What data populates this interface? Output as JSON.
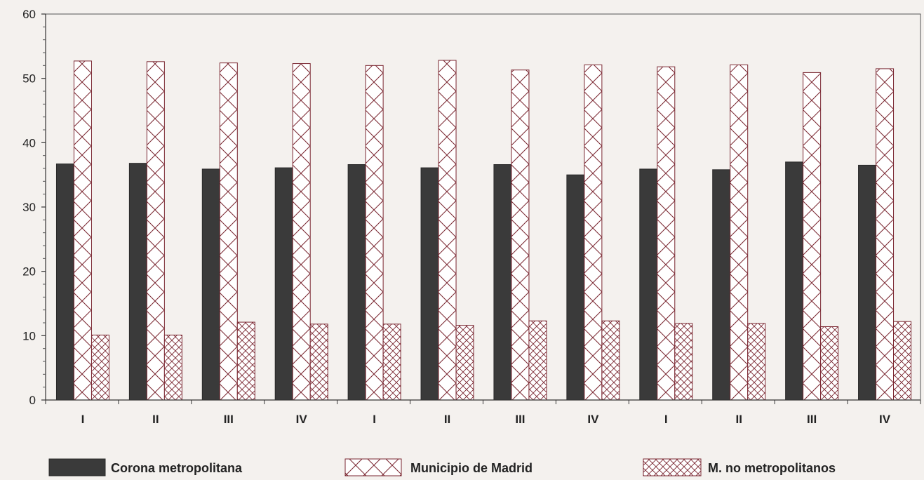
{
  "chart_data": {
    "type": "bar",
    "categories": [
      "I",
      "II",
      "III",
      "IV",
      "I",
      "II",
      "III",
      "IV",
      "I",
      "II",
      "III",
      "IV"
    ],
    "series": [
      {
        "name": "Corona metropolitana",
        "pattern": "solid",
        "color": "#3a3a3a",
        "values": [
          36.7,
          36.8,
          35.9,
          36.1,
          36.6,
          36.1,
          36.6,
          35.0,
          35.9,
          35.8,
          37.0,
          36.5
        ]
      },
      {
        "name": "Municipio de Madrid",
        "pattern": "wide-crosshatch",
        "color": "#ffffff",
        "values": [
          52.7,
          52.6,
          52.4,
          52.3,
          52.0,
          52.8,
          51.3,
          52.1,
          51.8,
          52.1,
          50.9,
          51.5
        ]
      },
      {
        "name": "M. no metropolitanos",
        "pattern": "dense-crosshatch",
        "color": "#ffffff",
        "values": [
          10.1,
          10.1,
          12.1,
          11.8,
          11.8,
          11.6,
          12.3,
          12.3,
          11.9,
          11.9,
          11.4,
          12.2
        ]
      }
    ],
    "yticks": [
      0,
      10,
      20,
      30,
      40,
      50,
      60
    ],
    "ylim": [
      0,
      60
    ],
    "grid": false,
    "legend_position": "bottom"
  }
}
